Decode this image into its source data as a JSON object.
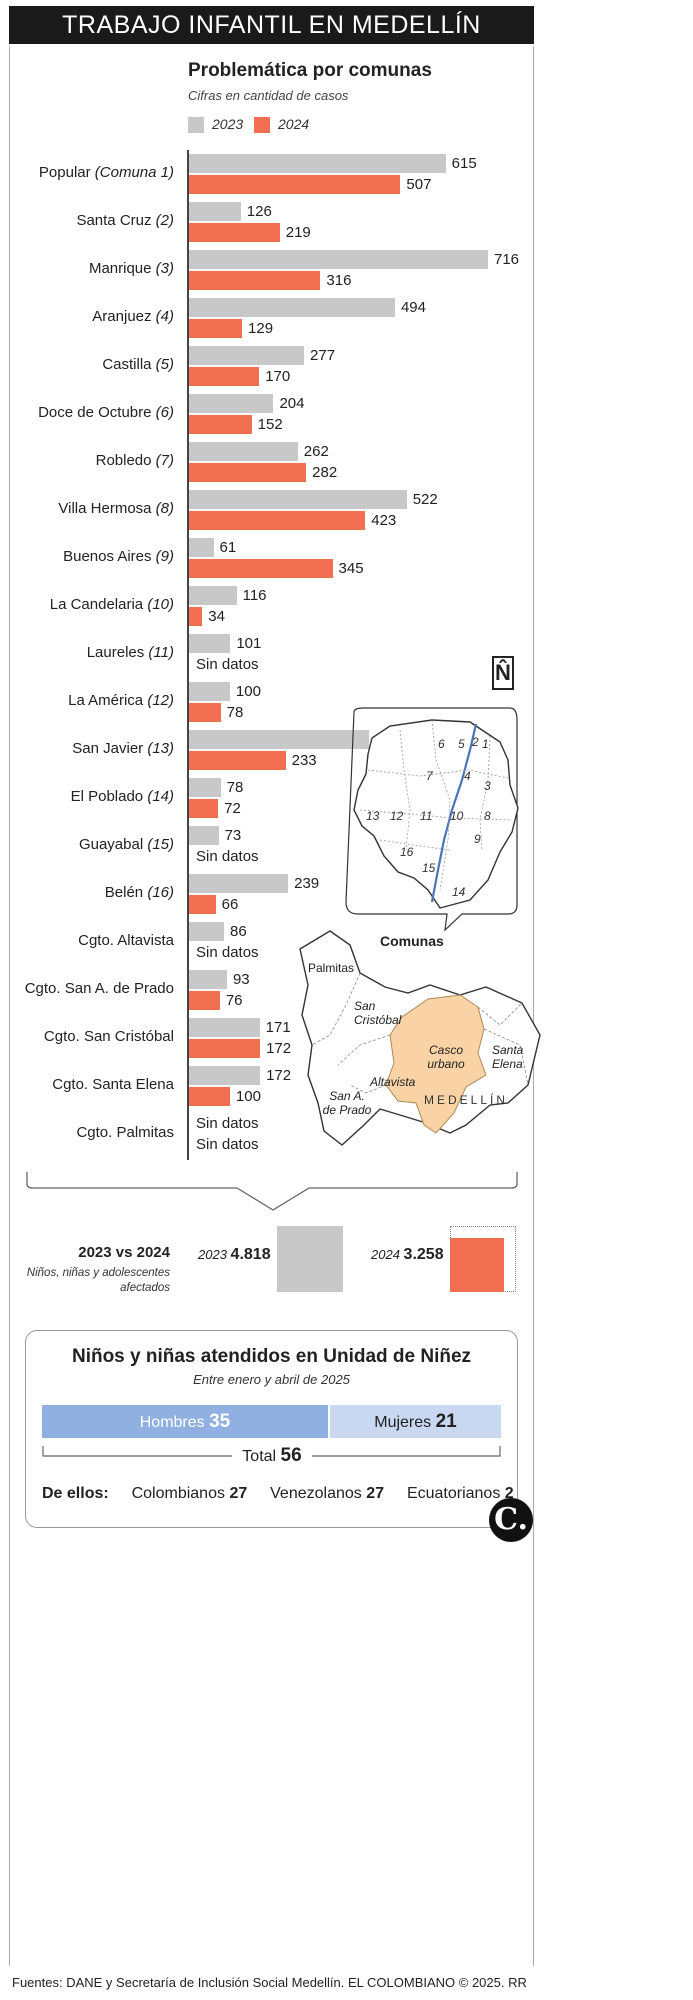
{
  "header": {
    "title": "TRABAJO INFANTIL EN MEDELLÍN"
  },
  "chart_data": {
    "type": "bar",
    "orientation": "horizontal",
    "title": "Problemática por comunas",
    "subtitle": "Cifras en cantidad de casos",
    "legend": [
      {
        "label": "2023",
        "color": "#c8c8c8"
      },
      {
        "label": "2024",
        "color": "#f26f52"
      }
    ],
    "categories": [
      {
        "name": "Popular",
        "tag": "(Comuna 1)"
      },
      {
        "name": "Santa Cruz",
        "tag": "(2)"
      },
      {
        "name": "Manrique",
        "tag": "(3)"
      },
      {
        "name": "Aranjuez",
        "tag": "(4)"
      },
      {
        "name": "Castilla",
        "tag": "(5)"
      },
      {
        "name": "Doce de Octubre",
        "tag": "(6)"
      },
      {
        "name": "Robledo",
        "tag": "(7)"
      },
      {
        "name": "Villa Hermosa",
        "tag": "(8)"
      },
      {
        "name": "Buenos Aires",
        "tag": "(9)"
      },
      {
        "name": "La Candelaria",
        "tag": "(10)"
      },
      {
        "name": "Laureles",
        "tag": "(11)"
      },
      {
        "name": "La América",
        "tag": "(12)"
      },
      {
        "name": "San Javier",
        "tag": "(13)"
      },
      {
        "name": "El Poblado",
        "tag": "(14)"
      },
      {
        "name": "Guayabal",
        "tag": "(15)"
      },
      {
        "name": "Belén",
        "tag": "(16)"
      },
      {
        "name": "Cgto. Altavista",
        "tag": ""
      },
      {
        "name": "Cgto. San A. de Prado",
        "tag": ""
      },
      {
        "name": "Cgto. San Cristóbal",
        "tag": ""
      },
      {
        "name": "Cgto. Santa Elena",
        "tag": ""
      },
      {
        "name": "Cgto. Palmitas",
        "tag": ""
      }
    ],
    "series": [
      {
        "name": "2023",
        "color": "#c8c8c8",
        "values": [
          615,
          126,
          716,
          494,
          277,
          204,
          262,
          522,
          61,
          116,
          101,
          100,
          432,
          78,
          73,
          239,
          86,
          93,
          171,
          172,
          null
        ]
      },
      {
        "name": "2024",
        "color": "#f26f52",
        "values": [
          507,
          219,
          316,
          129,
          170,
          152,
          282,
          423,
          345,
          34,
          null,
          78,
          233,
          72,
          null,
          66,
          null,
          76,
          172,
          100,
          null
        ]
      }
    ],
    "no_data_label": "Sin datos",
    "xlim": [
      0,
      716
    ]
  },
  "map": {
    "north_symbol": "N̂",
    "comunas_label": "Comunas",
    "comuna_numbers": [
      "1",
      "2",
      "3",
      "4",
      "5",
      "6",
      "7",
      "8",
      "9",
      "10",
      "11",
      "12",
      "13",
      "14",
      "15",
      "16"
    ],
    "regions": {
      "palmitas": "Palmitas",
      "san_cristobal": "San Cristóbal",
      "casco_urbano": "Casco urbano",
      "santa_elena": "Santa Elena",
      "altavista": "Altavista",
      "san_a_de_prado": "San A. de Prado",
      "medellin": "MEDELLÍN"
    },
    "colors": {
      "casco": "#f9d3a5",
      "river": "#4a74b8"
    }
  },
  "comparison": {
    "title": "2023 vs 2024",
    "note": "Niños, niñas y adolescentes afectados",
    "items": [
      {
        "year": "2023",
        "value": "4.818",
        "color": "#c8c8c8"
      },
      {
        "year": "2024",
        "value": "3.258",
        "color": "#f26f52"
      }
    ],
    "totals": [
      4818,
      3258
    ]
  },
  "unidad_ninez": {
    "title": "Niños y niñas atendidos en Unidad de Niñez",
    "subtitle": "Entre enero y abril de 2025",
    "men_label": "Hombres",
    "men_value": "35",
    "women_label": "Mujeres",
    "women_value": "21",
    "total_label": "Total",
    "total_value": "56",
    "origins_label": "De ellos:",
    "origins": [
      {
        "label": "Colombianos",
        "value": "27"
      },
      {
        "label": "Venezolanos",
        "value": "27"
      },
      {
        "label": "Ecuatorianos",
        "value": "2"
      }
    ]
  },
  "footer": {
    "source": "Fuentes: DANE y Secretaría de Inclusión Social Medellín. EL COLOMBIANO © 2025. RR"
  },
  "logo": {
    "letter": "C."
  }
}
